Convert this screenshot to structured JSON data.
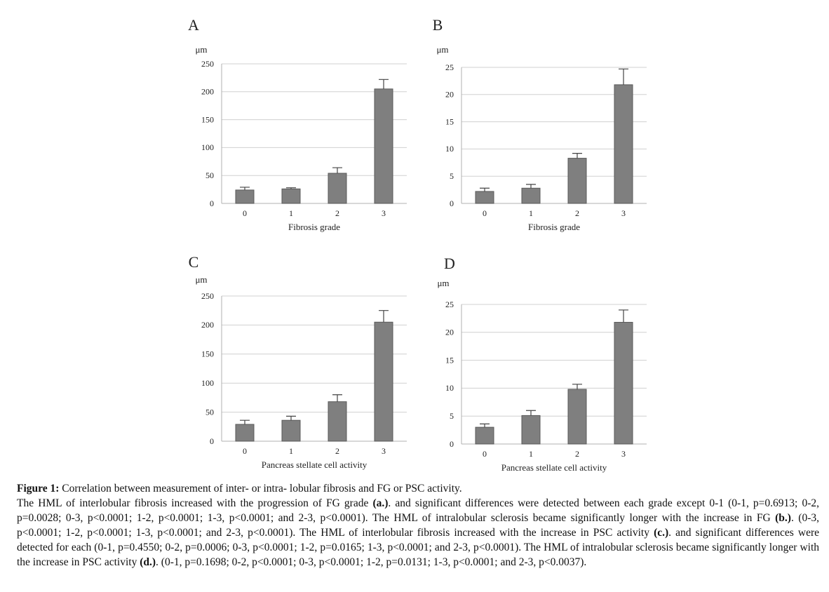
{
  "chart_data": [
    {
      "type": "bar",
      "title": "A",
      "y_unit": "μm",
      "x_label": "Fibrosis grade",
      "categories": [
        "0",
        "1",
        "2",
        "3"
      ],
      "values": [
        24,
        26,
        54,
        205
      ],
      "errors": [
        5,
        2,
        10,
        17
      ],
      "color": "#7f7f7f",
      "ylim": [
        0,
        250
      ],
      "yticks": [
        0,
        50,
        100,
        150,
        200,
        250
      ],
      "grid": true
    },
    {
      "type": "bar",
      "title": "B",
      "y_unit": "μm",
      "x_label": "Fibrosis grade",
      "categories": [
        "0",
        "1",
        "2",
        "3"
      ],
      "values": [
        2.2,
        2.8,
        8.3,
        21.8
      ],
      "errors": [
        0.6,
        0.7,
        0.9,
        2.9
      ],
      "color": "#7f7f7f",
      "ylim": [
        0,
        25
      ],
      "yticks": [
        0,
        5,
        10,
        15,
        20,
        25
      ],
      "grid": true
    },
    {
      "type": "bar",
      "title": "C",
      "y_unit": "μm",
      "x_label": "Pancreas stellate cell activity",
      "categories": [
        "0",
        "1",
        "2",
        "3"
      ],
      "values": [
        29,
        36,
        68,
        205
      ],
      "errors": [
        7,
        7,
        12,
        20
      ],
      "color": "#7f7f7f",
      "ylim": [
        0,
        250
      ],
      "yticks": [
        0,
        50,
        100,
        150,
        200,
        250
      ],
      "grid": true
    },
    {
      "type": "bar",
      "title": "D",
      "y_unit": "μm",
      "x_label": "Pancreas stellate cell activity",
      "categories": [
        "0",
        "1",
        "2",
        "3"
      ],
      "values": [
        3.0,
        5.1,
        9.8,
        21.8
      ],
      "errors": [
        0.6,
        0.9,
        0.9,
        2.2
      ],
      "color": "#7f7f7f",
      "ylim": [
        0,
        25
      ],
      "yticks": [
        0,
        5,
        10,
        15,
        20,
        25
      ],
      "grid": true
    }
  ],
  "caption": {
    "label": "Figure 1:",
    "title": " Correlation between measurement of inter- or intra- lobular fibrosis and FG or PSC activity.",
    "body": [
      "The HML of interlobular fibrosis increased with the progression of FG grade ",
      "(a.)",
      ". and significant differences were detected between each grade except 0-1 (0-1, p=0.6913; 0-2, p=0.0028; 0-3, p<0.0001; 1-2, p<0.0001; 1-3, p<0.0001; and 2-3, p<0.0001). The HML of intralobular sclerosis became significantly longer with the increase in FG ",
      "(b.)",
      ". (0-3, p<0.0001; 1-2, p<0.0001; 1-3, p<0.0001; and 2-3, p<0.0001). The HML of interlobular fibrosis increased with the increase in PSC activity ",
      "(c.)",
      ". and significant differences were detected for each (0-1, p=0.4550; 0-2, p=0.0006; 0-3, p<0.0001; 1-2, p=0.0165; 1-3, p<0.0001; and 2-3, p<0.0001). The HML of intralobular sclerosis became significantly longer with the increase in PSC activity ",
      "(d.)",
      ". (0-1, p=0.1698; 0-2, p<0.0001; 0-3, p<0.0001; 1-2, p=0.0131; 1-3, p<0.0001; and 2-3, p<0.0037)."
    ]
  }
}
